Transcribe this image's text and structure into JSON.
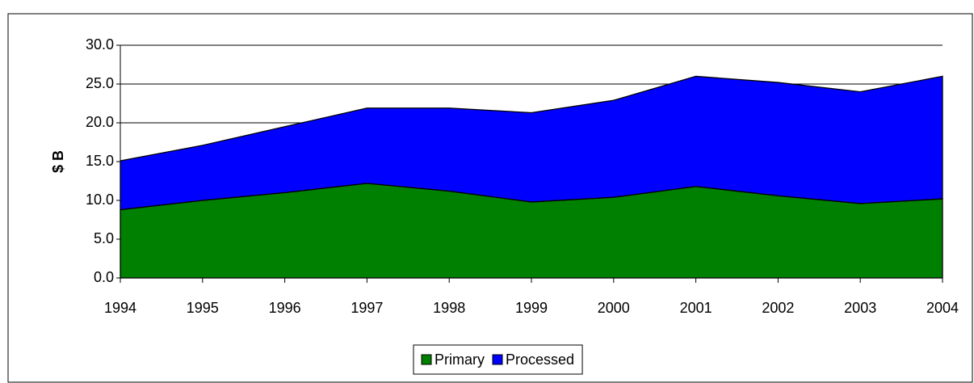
{
  "chart_data": {
    "type": "stacked-area",
    "y_label": "$ B",
    "categories": [
      "1994",
      "1995",
      "1996",
      "1997",
      "1998",
      "1999",
      "2000",
      "2001",
      "2002",
      "2003",
      "2004"
    ],
    "series": [
      {
        "name": "Primary",
        "color": "#008000",
        "values": [
          8.8,
          10.0,
          11.0,
          12.2,
          11.2,
          9.8,
          10.4,
          11.8,
          10.6,
          9.6,
          10.2
        ]
      },
      {
        "name": "Processed",
        "color": "#0000ff",
        "values": [
          6.3,
          7.1,
          8.5,
          9.7,
          10.7,
          11.5,
          12.5,
          14.2,
          14.6,
          14.4,
          15.8
        ]
      }
    ],
    "ylim": [
      0,
      30
    ],
    "yticks": [
      {
        "value": 0,
        "label": "0.0"
      },
      {
        "value": 5,
        "label": "5.0"
      },
      {
        "value": 10,
        "label": "10.0"
      },
      {
        "value": 15,
        "label": "15.0"
      },
      {
        "value": 20,
        "label": "20.0"
      },
      {
        "value": 25,
        "label": "25.0"
      },
      {
        "value": 30,
        "label": "30.0"
      }
    ],
    "grid": true,
    "legend": "bottom"
  }
}
